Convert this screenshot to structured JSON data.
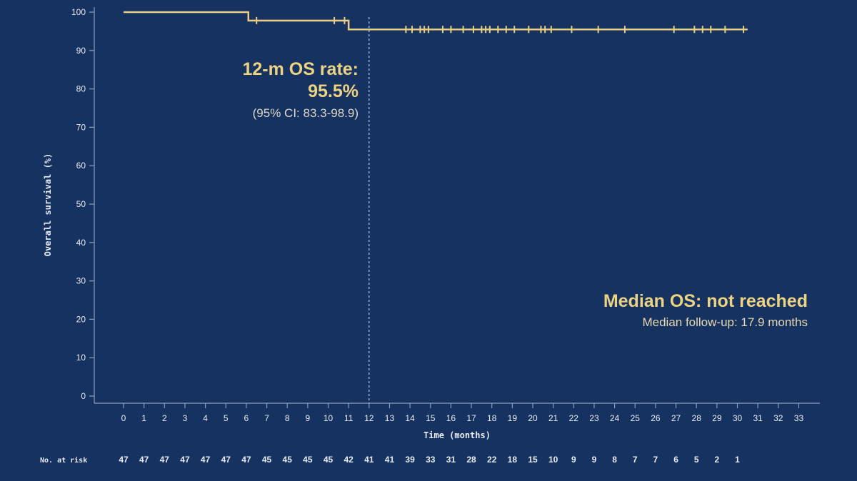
{
  "chart_data": {
    "type": "line",
    "ylabel": "Overall survival (%)",
    "xlabel": "Time (months)",
    "ylim": [
      0,
      100
    ],
    "xlim": [
      0,
      33
    ],
    "yticks": [
      0,
      10,
      20,
      30,
      40,
      50,
      60,
      70,
      80,
      90,
      100
    ],
    "xticks": [
      0,
      1,
      2,
      3,
      4,
      5,
      6,
      7,
      8,
      9,
      10,
      11,
      12,
      13,
      14,
      15,
      16,
      17,
      18,
      19,
      20,
      21,
      22,
      23,
      24,
      25,
      26,
      27,
      28,
      29,
      30,
      31,
      32,
      33
    ],
    "grid": false,
    "colors": {
      "background": "#163260",
      "curve": "#e8cf82",
      "text": "#e8ecf4"
    },
    "series": [
      {
        "steps": [
          {
            "x": 0,
            "y": 100
          },
          {
            "x": 6.1,
            "y": 97.8
          },
          {
            "x": 11.0,
            "y": 95.5
          },
          {
            "x": 30.5,
            "y": 95.5
          }
        ],
        "censored": [
          {
            "x": 6.5,
            "y": 97.8
          },
          {
            "x": 10.3,
            "y": 97.8
          },
          {
            "x": 10.8,
            "y": 97.8
          },
          {
            "x": 13.8,
            "y": 95.5
          },
          {
            "x": 14.1,
            "y": 95.5
          },
          {
            "x": 14.5,
            "y": 95.5
          },
          {
            "x": 14.7,
            "y": 95.5
          },
          {
            "x": 14.9,
            "y": 95.5
          },
          {
            "x": 15.6,
            "y": 95.5
          },
          {
            "x": 16.0,
            "y": 95.5
          },
          {
            "x": 16.6,
            "y": 95.5
          },
          {
            "x": 17.1,
            "y": 95.5
          },
          {
            "x": 17.5,
            "y": 95.5
          },
          {
            "x": 17.7,
            "y": 95.5
          },
          {
            "x": 17.9,
            "y": 95.5
          },
          {
            "x": 18.3,
            "y": 95.5
          },
          {
            "x": 18.7,
            "y": 95.5
          },
          {
            "x": 19.1,
            "y": 95.5
          },
          {
            "x": 19.8,
            "y": 95.5
          },
          {
            "x": 20.4,
            "y": 95.5
          },
          {
            "x": 20.6,
            "y": 95.5
          },
          {
            "x": 20.9,
            "y": 95.5
          },
          {
            "x": 21.9,
            "y": 95.5
          },
          {
            "x": 23.2,
            "y": 95.5
          },
          {
            "x": 24.5,
            "y": 95.5
          },
          {
            "x": 26.9,
            "y": 95.5
          },
          {
            "x": 27.9,
            "y": 95.5
          },
          {
            "x": 28.3,
            "y": 95.5
          },
          {
            "x": 28.7,
            "y": 95.5
          },
          {
            "x": 29.4,
            "y": 95.5
          },
          {
            "x": 30.3,
            "y": 95.5
          }
        ]
      }
    ],
    "reference_line_x": 12,
    "annotations": {
      "os_rate_title": "12-m OS rate:",
      "os_rate_value": "95.5%",
      "os_rate_ci": "(95% CI: 83.3-98.9)",
      "median_os": "Median OS: not reached",
      "median_followup": "Median follow-up:  17.9 months"
    },
    "at_risk": {
      "label": "No. at risk",
      "values": [
        47,
        47,
        47,
        47,
        47,
        47,
        47,
        45,
        45,
        45,
        45,
        42,
        41,
        41,
        39,
        33,
        31,
        28,
        22,
        18,
        15,
        10,
        9,
        9,
        8,
        7,
        7,
        6,
        5,
        2,
        1
      ]
    }
  }
}
